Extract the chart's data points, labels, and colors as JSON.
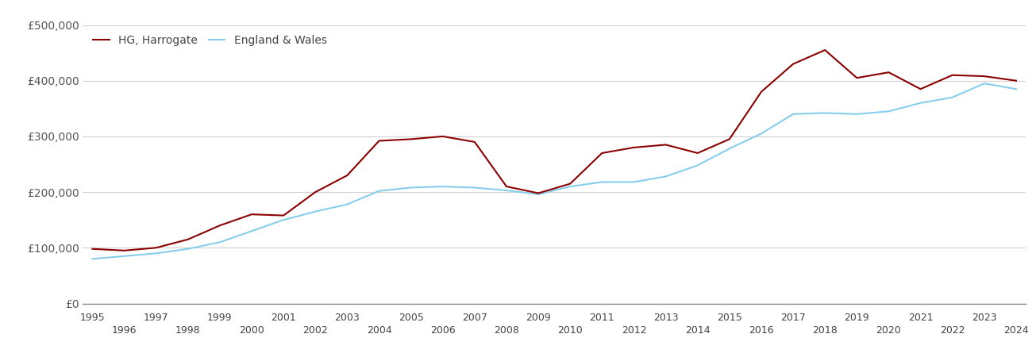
{
  "years": [
    1995,
    1996,
    1997,
    1998,
    1999,
    2000,
    2001,
    2002,
    2003,
    2004,
    2005,
    2006,
    2007,
    2008,
    2009,
    2010,
    2011,
    2012,
    2013,
    2014,
    2015,
    2016,
    2017,
    2018,
    2019,
    2020,
    2021,
    2022,
    2023,
    2024
  ],
  "harrogate": [
    98000,
    95000,
    100000,
    115000,
    140000,
    160000,
    158000,
    200000,
    230000,
    292000,
    295000,
    300000,
    290000,
    210000,
    198000,
    215000,
    270000,
    280000,
    285000,
    270000,
    295000,
    380000,
    430000,
    455000,
    405000,
    415000,
    385000,
    410000,
    408000,
    400000
  ],
  "england_wales": [
    80000,
    85000,
    90000,
    98000,
    110000,
    130000,
    150000,
    165000,
    178000,
    202000,
    208000,
    210000,
    208000,
    203000,
    196000,
    210000,
    218000,
    218000,
    228000,
    248000,
    278000,
    305000,
    340000,
    342000,
    340000,
    345000,
    360000,
    370000,
    395000,
    385000
  ],
  "harrogate_color": "#8B0000",
  "england_wales_color": "#87CEEB",
  "harrogate_label": "HG, Harrogate",
  "england_wales_label": "England & Wales",
  "ylim": [
    0,
    500000
  ],
  "yticks": [
    0,
    100000,
    200000,
    300000,
    400000,
    500000
  ],
  "ytick_labels": [
    "£0",
    "£100,000",
    "£200,000",
    "£300,000",
    "£400,000",
    "£500,000"
  ],
  "background_color": "#ffffff",
  "grid_color": "#d0d0d0",
  "line_width": 1.5,
  "legend_loc": "upper left"
}
